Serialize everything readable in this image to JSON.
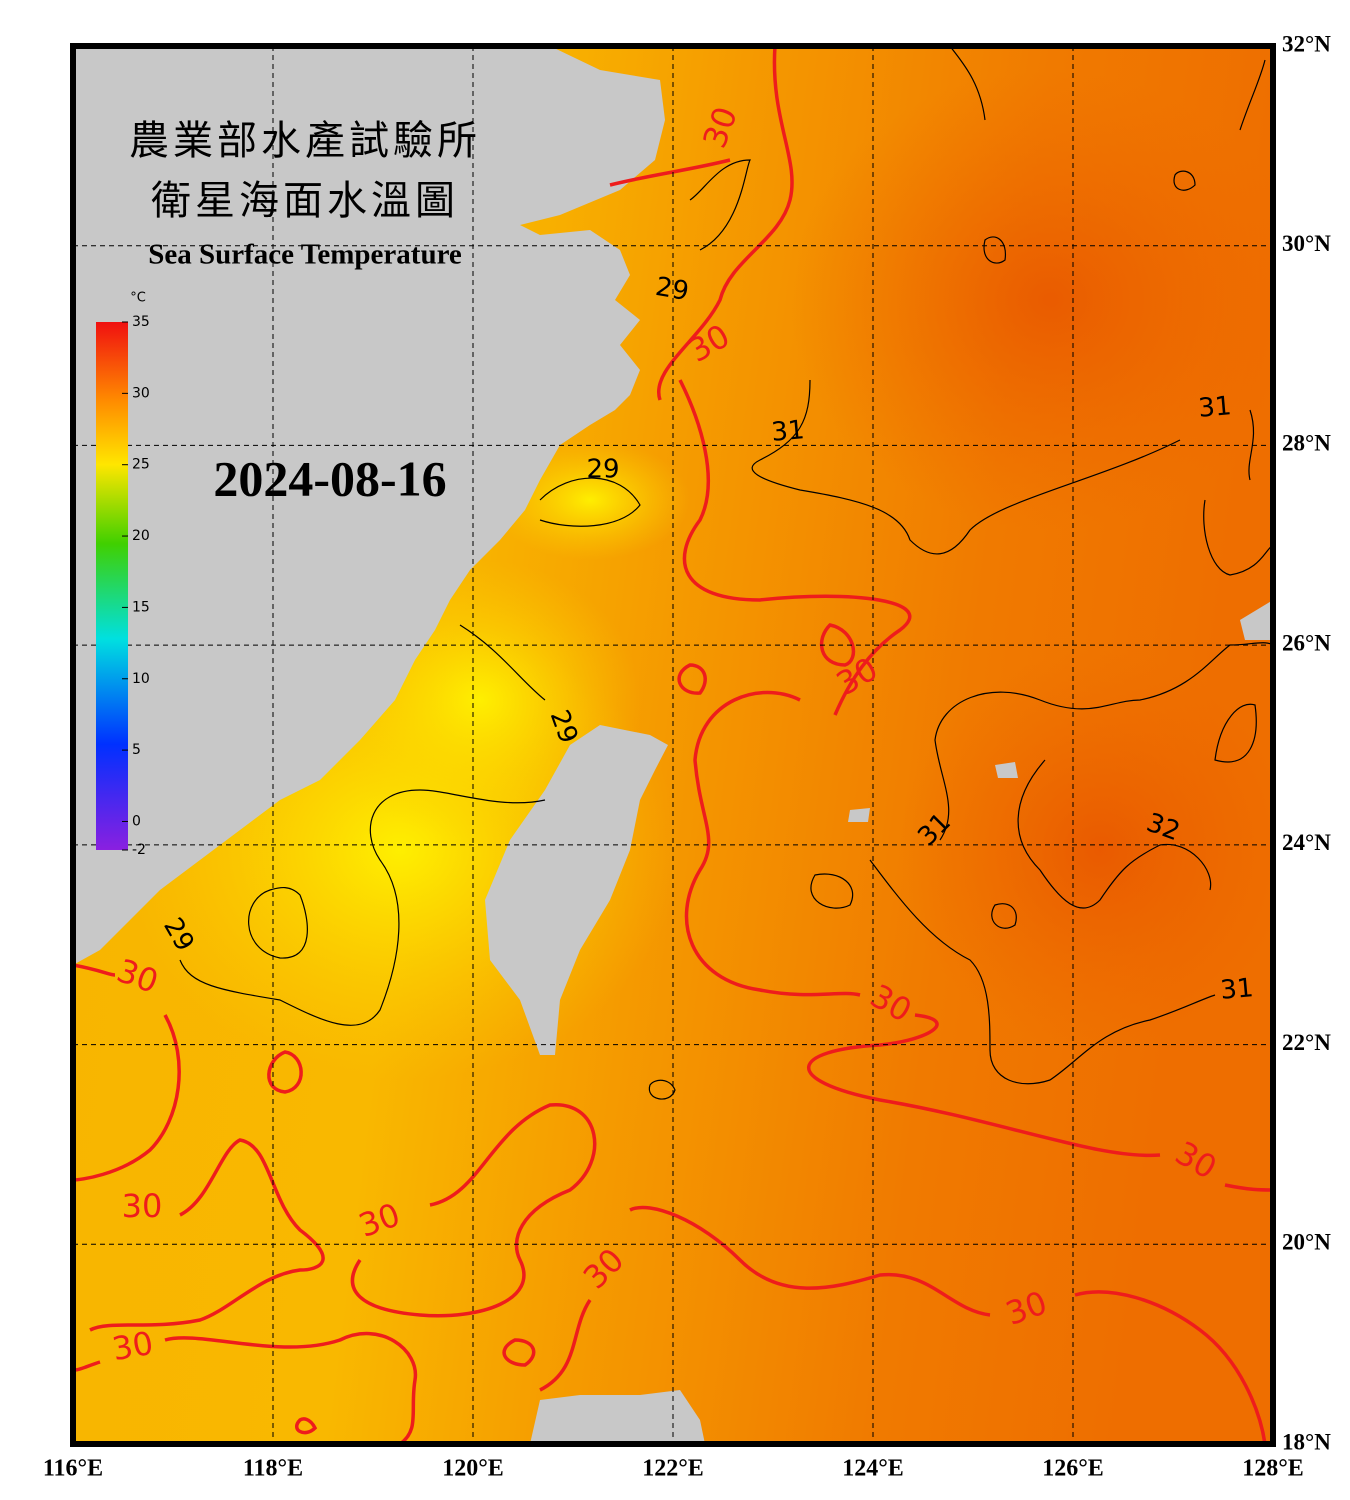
{
  "header": {
    "title_zh": "農業部水產試驗所",
    "subtitle_zh": "衛星海面水溫圖",
    "title_en": "Sea Surface Temperature",
    "date": "2024-08-16"
  },
  "colorbar": {
    "unit": "°C",
    "ticks": [
      35,
      30,
      25,
      20,
      15,
      10,
      5,
      0,
      -2
    ]
  },
  "map": {
    "lonlim": [
      116,
      128
    ],
    "latlim": [
      18,
      32
    ],
    "lonticks": [
      {
        "value": 116,
        "label": "116°E"
      },
      {
        "value": 118,
        "label": "118°E"
      },
      {
        "value": 120,
        "label": "120°E"
      },
      {
        "value": 122,
        "label": "122°E"
      },
      {
        "value": 124,
        "label": "124°E"
      },
      {
        "value": 126,
        "label": "126°E"
      },
      {
        "value": 128,
        "label": "128°E"
      }
    ],
    "latticks": [
      {
        "value": 32,
        "label": "32°N"
      },
      {
        "value": 30,
        "label": "30°N"
      },
      {
        "value": 28,
        "label": "28°N"
      },
      {
        "value": 26,
        "label": "26°N"
      },
      {
        "value": 24,
        "label": "24°N"
      },
      {
        "value": 22,
        "label": "22°N"
      },
      {
        "value": 20,
        "label": "20°N"
      },
      {
        "value": 18,
        "label": "18°N"
      }
    ],
    "contour_labels": [
      30,
      29,
      30,
      31,
      31,
      29,
      30,
      29,
      31,
      32,
      29,
      30,
      30,
      31,
      30,
      30,
      30,
      30,
      30,
      30
    ]
  }
}
